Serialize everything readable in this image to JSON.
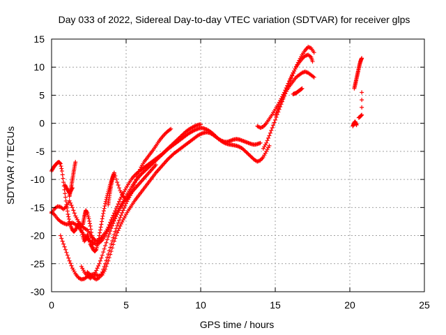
{
  "chart_data": {
    "type": "scatter",
    "title": "Day 033 of 2022, Sidereal Day-to-day VTEC variation (SDTVAR) for receiver glps",
    "xlabel": "GPS time / hours",
    "ylabel": "SDTVAR / TECUs",
    "xlim": [
      0,
      25
    ],
    "ylim": [
      -30,
      15
    ],
    "xticks": [
      "0",
      "5",
      "10",
      "15",
      "20",
      "25"
    ],
    "yticks": [
      "15",
      "10",
      "5",
      "0",
      "-5",
      "-10",
      "-15",
      "-20",
      "-25",
      "-30"
    ],
    "grid": true,
    "marker": "+",
    "color": "#ff0000",
    "series": [
      {
        "x": [
          0.0,
          0.1,
          0.2,
          0.3,
          0.4,
          0.5,
          0.6,
          0.7,
          0.8,
          0.9,
          1.0,
          1.1,
          1.2,
          1.3,
          1.4,
          1.5,
          1.6,
          1.7,
          1.8,
          1.9,
          2.0,
          2.1,
          2.2,
          2.3,
          2.4,
          2.5,
          2.6,
          2.7,
          2.8,
          2.9,
          3.0,
          3.1,
          3.2,
          3.3,
          3.4,
          3.5,
          3.6,
          3.7,
          3.8,
          3.9,
          4.0,
          4.1,
          4.2,
          4.4,
          4.6,
          4.8,
          5.0,
          5.2,
          5.4,
          5.6,
          5.8,
          6.0,
          6.2,
          6.4,
          6.6,
          6.8,
          7.0,
          7.2,
          7.4,
          7.6,
          7.8,
          8.0
        ],
        "y": [
          -8.5,
          -8.0,
          -7.6,
          -7.3,
          -7.0,
          -6.9,
          -7.2,
          -8.5,
          -10.5,
          -12.5,
          -14.5,
          -16.2,
          -17.5,
          -18.4,
          -19.0,
          -19.3,
          -19.0,
          -18.4,
          -17.8,
          -18.0,
          -19.0,
          -20.2,
          -21.0,
          -20.6,
          -19.8,
          -20.5,
          -21.5,
          -22.0,
          -22.5,
          -22.8,
          -22.5,
          -21.5,
          -20.0,
          -18.5,
          -17.0,
          -15.6,
          -14.3,
          -13.2,
          -12.2,
          -11.2,
          -10.3,
          -9.5,
          -8.8,
          -10.5,
          -12.0,
          -13.0,
          -13.6,
          -13.2,
          -12.0,
          -10.5,
          -9.0,
          -7.8,
          -6.9,
          -6.2,
          -5.5,
          -4.8,
          -4.0,
          -3.2,
          -2.5,
          -1.9,
          -1.4,
          -1.0
        ]
      },
      {
        "x": [
          0.0,
          0.2,
          0.4,
          0.6,
          0.8,
          1.0,
          1.2,
          1.4,
          1.6,
          1.8,
          2.0,
          2.2,
          2.4,
          2.6,
          2.8,
          3.0,
          3.2,
          3.4,
          3.6,
          3.8,
          4.0,
          4.2,
          4.4,
          4.6,
          4.8,
          5.0,
          5.2,
          5.4,
          5.6,
          5.8,
          6.0,
          6.2,
          6.4,
          6.6,
          6.8,
          7.0,
          7.2,
          7.4,
          7.6,
          7.8,
          8.0,
          8.2,
          8.4,
          8.6,
          8.8,
          9.0,
          9.2,
          9.4,
          9.6,
          9.8,
          10.0
        ],
        "y": [
          -16.0,
          -15.2,
          -14.8,
          -14.9,
          -15.3,
          -14.8,
          -13.8,
          -15.0,
          -16.5,
          -17.5,
          -18.2,
          -18.7,
          -19.0,
          -19.8,
          -20.5,
          -21.0,
          -20.8,
          -20.2,
          -19.5,
          -18.5,
          -17.2,
          -16.0,
          -14.8,
          -13.5,
          -12.5,
          -11.5,
          -10.6,
          -9.8,
          -9.2,
          -8.7,
          -8.3,
          -7.9,
          -7.5,
          -7.1,
          -6.7,
          -6.3,
          -5.9,
          -5.5,
          -5.0,
          -4.5,
          -4.0,
          -3.5,
          -3.0,
          -2.5,
          -2.0,
          -1.5,
          -1.1,
          -0.8,
          -0.5,
          -0.3,
          -0.2
        ]
      },
      {
        "x": [
          0.0,
          0.2,
          0.4,
          0.6,
          0.8,
          1.0,
          1.2,
          1.4,
          1.6,
          1.8,
          2.0,
          2.2,
          2.4,
          2.6,
          2.8,
          3.0,
          3.2,
          3.4,
          3.6,
          3.8,
          4.0,
          4.2,
          4.4,
          4.6,
          4.8,
          5.0,
          5.2,
          5.4,
          5.6,
          5.8,
          6.0,
          6.2,
          6.4,
          6.6,
          6.8,
          7.0,
          7.2,
          7.4,
          7.6,
          7.8,
          8.0,
          8.2,
          8.4,
          8.6,
          8.8,
          9.0,
          9.2,
          9.4,
          9.6,
          9.8,
          10.0,
          10.2,
          10.4,
          10.6,
          10.8,
          11.0,
          11.2,
          11.4,
          11.6,
          11.8,
          12.0,
          12.2,
          12.4,
          12.6,
          12.8,
          13.0,
          13.2,
          13.4,
          13.6,
          13.8,
          14.0,
          14.2,
          14.4,
          14.6
        ],
        "y": [
          -15.8,
          -16.3,
          -17.0,
          -17.5,
          -17.8,
          -18.0,
          -17.9,
          -17.7,
          -18.0,
          -18.5,
          -19.2,
          -20.0,
          -20.6,
          -21.0,
          -21.3,
          -21.5,
          -21.3,
          -20.8,
          -20.0,
          -19.0,
          -17.9,
          -16.8,
          -15.8,
          -14.8,
          -13.9,
          -13.0,
          -12.1,
          -11.2,
          -10.4,
          -9.7,
          -9.1,
          -8.6,
          -8.1,
          -7.6,
          -7.1,
          -6.6,
          -6.1,
          -5.6,
          -5.1,
          -4.6,
          -4.2,
          -3.8,
          -3.4,
          -3.0,
          -2.6,
          -2.2,
          -1.8,
          -1.5,
          -1.2,
          -1.0,
          -0.8,
          -0.9,
          -1.1,
          -1.4,
          -1.8,
          -2.3,
          -2.8,
          -3.2,
          -3.5,
          -3.7,
          -3.8,
          -3.9,
          -4.0,
          -4.2,
          -4.5,
          -5.0,
          -5.5,
          -6.0,
          -6.5,
          -6.8,
          -6.6,
          -6.0,
          -5.0,
          -4.0
        ]
      },
      {
        "x": [
          0.6,
          0.8,
          1.0,
          1.2,
          1.4,
          1.6,
          1.8,
          2.0,
          2.2,
          2.4,
          2.6,
          2.8,
          3.0,
          3.2,
          3.4,
          3.6,
          3.8,
          4.0,
          4.2,
          4.4,
          4.6,
          4.8,
          5.0,
          5.2,
          5.4,
          5.6,
          5.8,
          6.0,
          6.2,
          6.4,
          6.6,
          6.8,
          7.0,
          7.2,
          7.4,
          7.6,
          7.8,
          8.0,
          8.2,
          8.4,
          8.6,
          8.8,
          9.0,
          9.2,
          9.4,
          9.6,
          9.8,
          10.0,
          10.2,
          10.4,
          10.6,
          10.8,
          11.0,
          11.2,
          11.4,
          11.6,
          11.8,
          12.0,
          12.2,
          12.4,
          12.6,
          12.8,
          13.0,
          13.2,
          13.4,
          13.6,
          13.8,
          14.0
        ],
        "y": [
          -20.0,
          -21.5,
          -23.0,
          -24.5,
          -25.8,
          -26.8,
          -27.5,
          -27.8,
          -27.7,
          -27.3,
          -27.0,
          -26.9,
          -27.0,
          -27.2,
          -27.0,
          -26.0,
          -24.5,
          -22.8,
          -21.0,
          -19.5,
          -18.3,
          -17.2,
          -16.2,
          -15.3,
          -14.5,
          -13.7,
          -13.0,
          -12.3,
          -11.6,
          -10.9,
          -10.2,
          -9.5,
          -8.8,
          -8.2,
          -7.6,
          -7.0,
          -6.4,
          -5.9,
          -5.4,
          -5.0,
          -4.6,
          -4.2,
          -3.8,
          -3.4,
          -3.0,
          -2.6,
          -2.2,
          -1.9,
          -1.7,
          -1.6,
          -1.7,
          -2.0,
          -2.4,
          -2.8,
          -3.1,
          -3.3,
          -3.3,
          -3.1,
          -2.9,
          -2.8,
          -2.9,
          -3.1,
          -3.3,
          -3.5,
          -3.7,
          -3.8,
          -3.7,
          -3.5
        ]
      },
      {
        "x": [
          2.0,
          2.2,
          2.4,
          2.6,
          2.8,
          3.0,
          3.2,
          3.4,
          3.6,
          3.8,
          4.0,
          4.2,
          4.4,
          4.6,
          4.8,
          5.0,
          5.2,
          5.4,
          5.6,
          5.8,
          6.0,
          6.2,
          6.4,
          6.6,
          6.8,
          7.0
        ],
        "y": [
          -25.5,
          -26.5,
          -27.2,
          -27.6,
          -27.2,
          -26.2,
          -25.0,
          -23.5,
          -21.8,
          -20.2,
          -18.7,
          -17.4,
          -16.2,
          -15.2,
          -14.3,
          -13.5,
          -12.8,
          -12.2,
          -11.6,
          -11.0,
          -10.4,
          -9.8,
          -9.2,
          -8.6,
          -8.0,
          -7.4
        ]
      },
      {
        "x": [
          2.4,
          2.6,
          2.8,
          3.0,
          3.2,
          3.4,
          3.6,
          3.8,
          4.0,
          4.2,
          4.4,
          4.6,
          4.8,
          5.0,
          5.2,
          5.4
        ],
        "y": [
          -26.5,
          -27.0,
          -27.5,
          -27.8,
          -27.5,
          -26.5,
          -25.0,
          -23.3,
          -21.5,
          -19.8,
          -18.2,
          -16.8,
          -15.5,
          -14.3,
          -13.2,
          -12.2
        ]
      },
      {
        "x": [
          3.8,
          3.85,
          3.9,
          3.95,
          4.0,
          4.05,
          4.1,
          4.15,
          4.2
        ],
        "y": [
          -14.5,
          -13.5,
          -12.5,
          -11.7,
          -10.9,
          -10.2,
          -9.7,
          -9.3,
          -9.0
        ]
      },
      {
        "x": [
          2.1,
          2.15,
          2.2,
          2.25,
          2.3,
          2.4,
          2.5,
          2.6,
          2.7,
          2.75,
          2.8
        ],
        "y": [
          -18.0,
          -17.3,
          -16.6,
          -16.0,
          -15.5,
          -16.0,
          -17.0,
          -18.3,
          -20.0,
          -21.2,
          -22.5
        ]
      },
      {
        "x": [
          0.9,
          1.0,
          1.1,
          1.2,
          1.3,
          1.4
        ],
        "y": [
          -11.0,
          -11.5,
          -12.0,
          -12.4,
          -12.0,
          -11.5
        ]
      },
      {
        "x": [
          1.2,
          1.25,
          1.3,
          1.35,
          1.4,
          1.45,
          1.5,
          1.55,
          1.6
        ],
        "y": [
          -13.0,
          -12.3,
          -11.6,
          -10.8,
          -10.0,
          -9.2,
          -8.4,
          -7.6,
          -6.9
        ]
      },
      {
        "x": [
          13.8,
          14.0,
          14.2,
          14.4,
          14.6,
          14.8,
          15.0,
          15.2,
          15.4,
          15.6,
          15.8,
          16.0,
          16.2,
          16.4,
          16.6,
          16.8,
          17.0,
          17.2,
          17.4,
          17.5
        ],
        "y": [
          -0.5,
          -0.8,
          -0.6,
          0.0,
          0.8,
          1.6,
          2.5,
          3.4,
          4.4,
          5.5,
          6.7,
          7.9,
          9.0,
          10.0,
          10.8,
          11.5,
          12.0,
          12.2,
          11.8,
          11.0
        ]
      },
      {
        "x": [
          14.2,
          14.4,
          14.6,
          14.8,
          15.0,
          15.2,
          15.4,
          15.6,
          15.8,
          16.0,
          16.2,
          16.4,
          16.6,
          16.8,
          17.0,
          17.2,
          17.4,
          17.6
        ],
        "y": [
          -4.5,
          -3.5,
          -2.2,
          -0.8,
          0.6,
          2.0,
          3.4,
          4.8,
          6.2,
          7.6,
          8.9,
          10.1,
          11.2,
          12.2,
          13.0,
          13.6,
          13.4,
          12.6
        ]
      },
      {
        "x": [
          15.0,
          15.2,
          15.4,
          15.6,
          15.8,
          16.0,
          16.2,
          16.4,
          16.6,
          16.8,
          17.0,
          17.2,
          17.4,
          17.6
        ],
        "y": [
          1.5,
          2.6,
          3.8,
          5.0,
          6.0,
          6.8,
          7.5,
          8.2,
          8.6,
          9.0,
          9.2,
          9.0,
          8.6,
          8.2
        ]
      },
      {
        "x": [
          16.2,
          16.3,
          16.4,
          16.5,
          16.6,
          16.7,
          16.8
        ],
        "y": [
          5.2,
          5.3,
          5.4,
          5.6,
          5.8,
          6.0,
          6.2
        ]
      },
      {
        "x": [
          20.3,
          20.35,
          20.4,
          20.45,
          20.5,
          20.55,
          20.6,
          20.65,
          20.7,
          20.75,
          20.8
        ],
        "y": [
          6.2,
          6.8,
          7.4,
          8.0,
          8.6,
          9.2,
          9.8,
          10.4,
          10.9,
          11.3,
          11.6
        ]
      },
      {
        "x": [
          20.2,
          20.25,
          20.3,
          20.35,
          20.4,
          20.45
        ],
        "y": [
          -0.5,
          -0.2,
          0.1,
          0.3,
          0.0,
          -0.3
        ]
      },
      {
        "x": [
          20.6,
          20.7,
          20.8,
          20.8
        ],
        "y": [
          1.0,
          1.2,
          1.5,
          5.5
        ]
      }
    ]
  }
}
